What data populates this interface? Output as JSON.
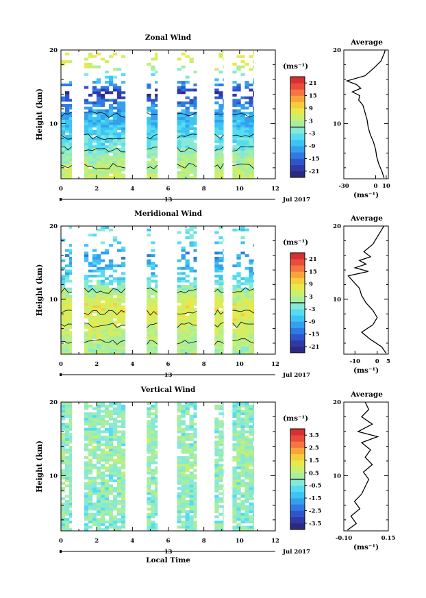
{
  "colors": {
    "colorbar": [
      "#2a2a80",
      "#2e3aa8",
      "#2e55cc",
      "#2f7ae0",
      "#33a0ee",
      "#3cc4f2",
      "#55dcf0",
      "#86e9d8",
      "#a8ee9e",
      "#c8ef70",
      "#e7e94a",
      "#f7cd3a",
      "#f9a43b",
      "#f5763e",
      "#ea4b3a",
      "#d6302f"
    ],
    "line": "#000000"
  },
  "chart_data": [
    {
      "type": "heatmap",
      "title": "Zonal Wind",
      "ylabel": "Height (km)",
      "unit_label": "(ms⁻¹)",
      "colorbar_ticks": [
        "21",
        "15",
        "9",
        "3",
        "-3",
        "-9",
        "-15",
        "-21"
      ],
      "colorbar_range": [
        -24,
        24
      ],
      "xlim": [
        0,
        12
      ],
      "x_ticks": [
        "0",
        "2",
        "4",
        "6",
        "8",
        "10",
        "12"
      ],
      "ylim": [
        2.5,
        20
      ],
      "y_ticks": [
        "10",
        "20"
      ],
      "day_label": "13",
      "date_label": "Jul 2017",
      "data_segments_local_time": [
        [
          0,
          0.6
        ],
        [
          1.3,
          3.6
        ],
        [
          4.8,
          5.4
        ],
        [
          6.5,
          7.6
        ],
        [
          8.6,
          9.1
        ],
        [
          9.6,
          10.8
        ]
      ],
      "mean_field": {
        "height_km": [
          3,
          5,
          7,
          9,
          11,
          12.5,
          14,
          16,
          18
        ],
        "value": [
          4,
          2,
          -3,
          -6,
          -9,
          -13,
          -20,
          -6,
          6
        ]
      },
      "average_profile": {
        "title": "Average",
        "xlim": [
          -30,
          12
        ],
        "x_ticks": [
          "-30",
          "0",
          "10"
        ],
        "xlabel": "(ms⁻¹)",
        "y_ticks": [
          "10",
          "20"
        ],
        "height_km": [
          2.6,
          3.5,
          4.5,
          5.5,
          6.5,
          7.5,
          8.5,
          9.5,
          10.5,
          11.5,
          12.5,
          13.2,
          13.8,
          14.3,
          14.8,
          15.3,
          15.8,
          16.5,
          17.5,
          18.5,
          19.5,
          20
        ],
        "value": [
          8,
          6,
          3,
          1,
          0,
          -2,
          -5,
          -7,
          -8,
          -10,
          -12,
          -16,
          -15,
          -22,
          -14,
          -18,
          -27,
          -10,
          -2,
          5,
          8,
          9
        ]
      }
    },
    {
      "type": "heatmap",
      "title": "Meridional Wind",
      "ylabel": "Height (km)",
      "unit_label": "(ms⁻¹)",
      "colorbar_ticks": [
        "21",
        "15",
        "9",
        "3",
        "-3",
        "-9",
        "-15",
        "-21"
      ],
      "colorbar_range": [
        -24,
        24
      ],
      "xlim": [
        0,
        12
      ],
      "x_ticks": [
        "0",
        "2",
        "4",
        "6",
        "8",
        "10",
        "12"
      ],
      "ylim": [
        2.5,
        20
      ],
      "y_ticks": [
        "10",
        "20"
      ],
      "day_label": "13",
      "date_label": "Jul 2017",
      "data_segments_local_time": [
        [
          0,
          0.6
        ],
        [
          1.3,
          3.6
        ],
        [
          4.8,
          5.4
        ],
        [
          6.5,
          7.6
        ],
        [
          8.6,
          9.1
        ],
        [
          9.6,
          10.8
        ]
      ],
      "mean_field": {
        "height_km": [
          3,
          5,
          7,
          9,
          11,
          12.5,
          14,
          16,
          18
        ],
        "value": [
          2,
          4,
          6,
          7,
          2,
          -5,
          -8,
          -10,
          -4
        ]
      },
      "average_profile": {
        "title": "Average",
        "xlim": [
          -15,
          5
        ],
        "x_ticks": [
          "-10",
          "0",
          "5"
        ],
        "xlabel": "(ms⁻¹)",
        "y_ticks": [
          "10",
          "20"
        ],
        "height_km": [
          2.6,
          3.5,
          4.5,
          5.5,
          6.5,
          7.5,
          8.5,
          9.5,
          10.5,
          11.5,
          12.5,
          13.2,
          13.8,
          14.3,
          14.8,
          15.3,
          15.8,
          16.5,
          17.5,
          18.5,
          19.5,
          20
        ],
        "value": [
          4,
          2,
          -3,
          -7,
          -2,
          0,
          -2,
          -5,
          -7,
          -8,
          -11,
          -13,
          -4,
          -10,
          -5,
          -8,
          -3,
          -6,
          -2,
          0,
          2,
          3
        ]
      }
    },
    {
      "type": "heatmap",
      "title": "Vertical Wind",
      "ylabel": "Height (km)",
      "xlabel": "Local Time",
      "unit_label": "(ms⁻¹)",
      "colorbar_ticks": [
        "3.5",
        "2.5",
        "1.5",
        "0.5",
        "-0.5",
        "-1.5",
        "-2.5",
        "-3.5"
      ],
      "colorbar_range": [
        -4,
        4
      ],
      "xlim": [
        0,
        12
      ],
      "x_ticks": [
        "0",
        "2",
        "4",
        "6",
        "8",
        "10",
        "12"
      ],
      "ylim": [
        2.5,
        20
      ],
      "y_ticks": [
        "10",
        "20"
      ],
      "day_label": "13",
      "date_label": "Jul 2017",
      "data_segments_local_time": [
        [
          0,
          0.6
        ],
        [
          1.3,
          3.6
        ],
        [
          4.8,
          5.4
        ],
        [
          6.5,
          7.6
        ],
        [
          8.6,
          9.1
        ],
        [
          9.6,
          10.8
        ]
      ],
      "mean_field": {
        "height_km": [
          3,
          8,
          13,
          18
        ],
        "value": [
          -0.2,
          0,
          0.1,
          -0.1
        ]
      },
      "average_profile": {
        "title": "Average",
        "xlim": [
          -0.1,
          0.15
        ],
        "x_ticks": [
          "-0.10",
          "0.15"
        ],
        "xlabel": "(ms⁻¹)",
        "y_ticks": [
          "10",
          "20"
        ],
        "height_km": [
          2.6,
          3.5,
          4.5,
          5.5,
          6.5,
          7.5,
          8.5,
          9.5,
          10.5,
          11.5,
          12.5,
          13.5,
          14.5,
          15.3,
          16,
          17,
          18,
          19,
          20
        ],
        "value": [
          -0.08,
          -0.03,
          -0.06,
          -0.01,
          -0.04,
          0.0,
          0.02,
          0.04,
          0.01,
          0.06,
          0.02,
          0.05,
          0.0,
          0.09,
          -0.02,
          0.06,
          0.0,
          0.04,
          0.02
        ]
      }
    }
  ]
}
